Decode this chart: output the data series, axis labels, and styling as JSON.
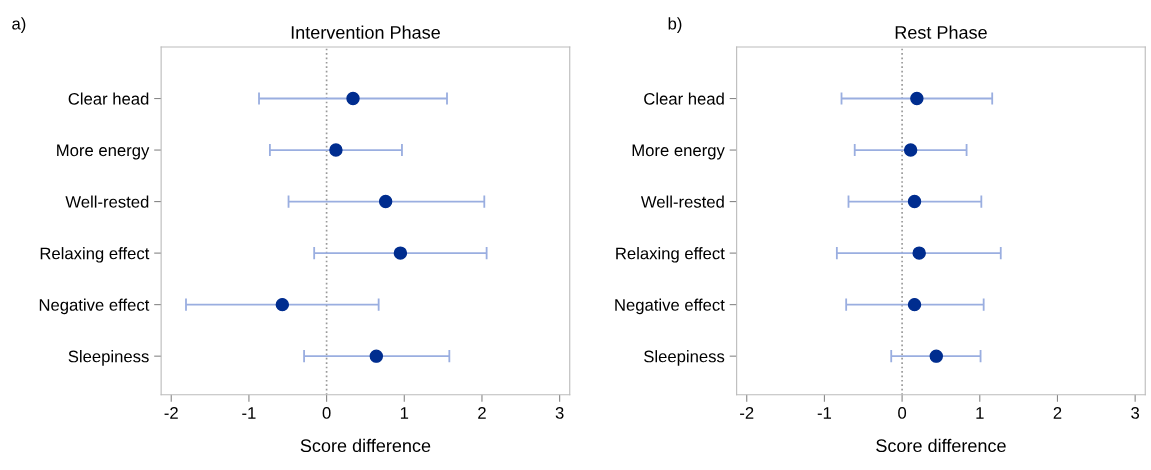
{
  "chart_data": [
    {
      "type": "scatter",
      "orientation": "horizontal",
      "title": "Intervention Phase",
      "xlabel": "Score difference",
      "annotations": [
        "a)"
      ],
      "categories": [
        "Clear head",
        "More energy",
        "Well-rested",
        "Relaxing effect",
        "Negative effect",
        "Sleepiness"
      ],
      "series": [
        {
          "color": "#002d8f",
          "values": [
            0.34,
            0.12,
            0.76,
            0.95,
            -0.57,
            0.64
          ],
          "errors": [
            [
              -0.87,
              1.55
            ],
            [
              -0.73,
              0.97
            ],
            [
              -0.49,
              2.03
            ],
            [
              -0.16,
              2.06
            ],
            [
              -1.81,
              0.67
            ],
            [
              -0.29,
              1.58
            ]
          ]
        }
      ],
      "xlim": [
        -2.13,
        3.13
      ],
      "xticks": [
        -2,
        -1,
        0,
        1,
        2,
        3
      ],
      "marker": "circle",
      "grid": false,
      "ref_lines": [
        {
          "axis": "x",
          "value": 0,
          "color": "#999999",
          "line_style": "dotted"
        }
      ]
    },
    {
      "type": "scatter",
      "orientation": "horizontal",
      "title": "Rest Phase",
      "xlabel": "Score difference",
      "annotations": [
        "b)"
      ],
      "categories": [
        "Clear head",
        "More energy",
        "Well-rested",
        "Relaxing effect",
        "Negative effect",
        "Sleepiness"
      ],
      "series": [
        {
          "color": "#002d8f",
          "values": [
            0.19,
            0.11,
            0.16,
            0.22,
            0.16,
            0.44
          ],
          "errors": [
            [
              -0.78,
              1.16
            ],
            [
              -0.61,
              0.83
            ],
            [
              -0.69,
              1.02
            ],
            [
              -0.84,
              1.27
            ],
            [
              -0.72,
              1.05
            ],
            [
              -0.14,
              1.01
            ]
          ]
        }
      ],
      "xlim": [
        -2.13,
        3.13
      ],
      "xticks": [
        -2,
        -1,
        0,
        1,
        2,
        3
      ],
      "marker": "circle",
      "grid": false,
      "ref_lines": [
        {
          "axis": "x",
          "value": 0,
          "color": "#999999",
          "line_style": "dotted"
        }
      ]
    }
  ]
}
